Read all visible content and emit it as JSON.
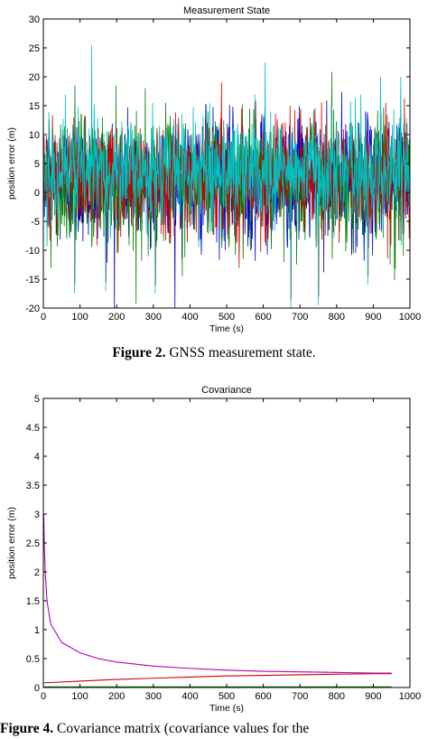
{
  "chart_data": [
    {
      "type": "line",
      "title": "Measurement State",
      "xlabel": "Time (s)",
      "ylabel": "position error (m)",
      "xlim": [
        0,
        1000
      ],
      "ylim": [
        -20,
        30
      ],
      "xticks": [
        0,
        100,
        200,
        300,
        400,
        500,
        600,
        700,
        800,
        900,
        1000
      ],
      "yticks": [
        -20,
        -15,
        -10,
        -5,
        0,
        5,
        10,
        15,
        20,
        25,
        30
      ],
      "grid": false,
      "legend": "none",
      "series_colors": [
        "#0000cc",
        "#007f00",
        "#cc0000",
        "#00bfbf"
      ],
      "noise": [
        {
          "mean": 2,
          "std": 5.5
        },
        {
          "mean": 2,
          "std": 5.5
        },
        {
          "mean": 3,
          "std": 5.0
        },
        {
          "mean": 4,
          "std": 4.5
        }
      ],
      "peaks": [
        {
          "x": 85,
          "y": -17.5
        },
        {
          "x": 132,
          "y": 25.5
        },
        {
          "x": 170,
          "y": -17
        },
        {
          "x": 305,
          "y": -17.5
        },
        {
          "x": 605,
          "y": 22.5
        },
        {
          "x": 675,
          "y": -20
        },
        {
          "x": 750,
          "y": -19.5
        },
        {
          "x": 885,
          "y": -16
        },
        {
          "x": 920,
          "y": 20
        },
        {
          "x": 975,
          "y": 20
        }
      ]
    },
    {
      "type": "line",
      "title": "Covariance",
      "xlabel": "Time (s)",
      "ylabel": "position error (m)",
      "xlim": [
        0,
        1000
      ],
      "ylim": [
        0,
        5
      ],
      "xticks": [
        0,
        100,
        200,
        300,
        400,
        500,
        600,
        700,
        800,
        900,
        1000
      ],
      "yticks": [
        0,
        0.5,
        1,
        1.5,
        2,
        2.5,
        3,
        3.5,
        4,
        4.5,
        5
      ],
      "grid": false,
      "legend": "none",
      "series": [
        {
          "color": "#b000b0",
          "x": [
            1,
            3,
            5,
            10,
            20,
            50,
            100,
            150,
            200,
            300,
            400,
            500,
            600,
            700,
            800,
            900,
            950
          ],
          "values": [
            3.0,
            2.4,
            2.0,
            1.5,
            1.1,
            0.78,
            0.6,
            0.5,
            0.44,
            0.37,
            0.33,
            0.3,
            0.28,
            0.27,
            0.26,
            0.25,
            0.25
          ]
        },
        {
          "color": "#cc0000",
          "x": [
            0,
            100,
            200,
            300,
            400,
            500,
            600,
            700,
            800,
            900,
            950
          ],
          "values": [
            0.08,
            0.11,
            0.14,
            0.16,
            0.18,
            0.2,
            0.21,
            0.22,
            0.23,
            0.24,
            0.24
          ]
        },
        {
          "color": "#007f00",
          "x": [
            0,
            950
          ],
          "values": [
            0.01,
            0.01
          ]
        },
        {
          "color": "#b0b000",
          "x": [
            0,
            950
          ],
          "values": [
            0.005,
            0.005
          ]
        }
      ]
    }
  ],
  "captions": [
    {
      "label": "Figure 2.",
      "text": " GNSS measurement state."
    },
    {
      "label": "Figure 4.",
      "text": " Covariance matrix (covariance values for the"
    }
  ]
}
